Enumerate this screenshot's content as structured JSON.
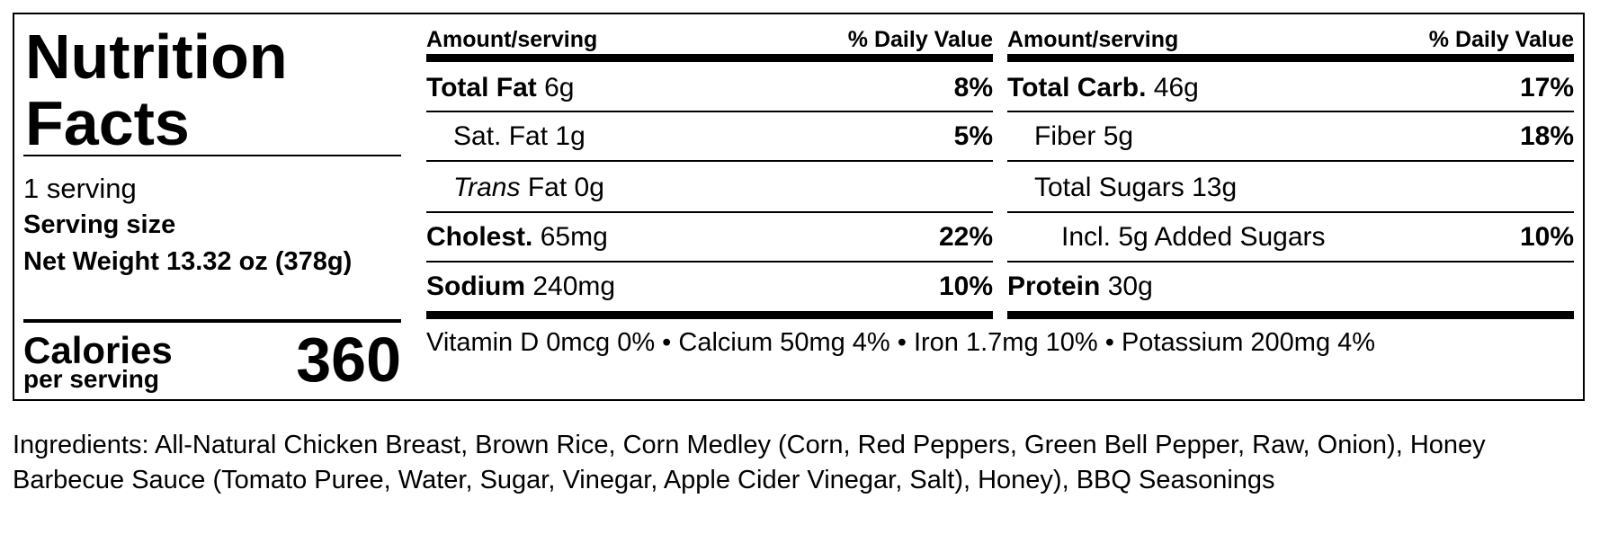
{
  "label": {
    "title": "Nutrition Facts",
    "servings": "1 serving",
    "serving_size_label": "Serving size",
    "serving_size": "Net Weight 13.32 oz (378g)",
    "calories_label": "Calories",
    "calories_sub": "per serving",
    "calories": "360",
    "columns": [
      {
        "amount_header": "Amount/serving",
        "dv_header": "% Daily Value",
        "rows": [
          {
            "name": "Total Fat",
            "amount": "6g",
            "dv": "8%",
            "bold": true,
            "indent": 0
          },
          {
            "name": "Sat. Fat",
            "amount": "1g",
            "dv": "5%",
            "bold": false,
            "indent": 1
          },
          {
            "italic": "Trans",
            "name": "Fat",
            "amount": "0g",
            "bold": false,
            "indent": 1
          },
          {
            "name": "Cholest.",
            "amount": "65mg",
            "dv": "22%",
            "bold": true,
            "indent": 0
          },
          {
            "name": "Sodium",
            "amount": "240mg",
            "dv": "10%",
            "bold": true,
            "indent": 0
          }
        ]
      },
      {
        "amount_header": "Amount/serving",
        "dv_header": "% Daily Value",
        "rows": [
          {
            "name": "Total Carb.",
            "amount": "46g",
            "dv": "17%",
            "bold": true,
            "indent": 0
          },
          {
            "name": "Fiber",
            "amount": "5g",
            "dv": "18%",
            "bold": false,
            "indent": 1
          },
          {
            "name": "Total Sugars",
            "amount": "13g",
            "bold": false,
            "indent": 1
          },
          {
            "name": "Incl. 5g Added Sugars",
            "dv": "10%",
            "bold": false,
            "indent": 2
          },
          {
            "name": "Protein",
            "amount": "30g",
            "bold": true,
            "indent": 0
          }
        ]
      }
    ],
    "vitamins": "Vitamin D 0mcg 0% • Calcium 50mg 4% • Iron 1.7mg 10% • Potassium 200mg 4%"
  },
  "ingredients": "Ingredients: All-Natural Chicken Breast, Brown Rice, Corn Medley (Corn, Red Peppers, Green Bell Pepper, Raw, Onion), Honey Barbecue Sauce (Tomato Puree, Water, Sugar, Vinegar, Apple Cider Vinegar, Salt), Honey), BBQ Seasonings"
}
